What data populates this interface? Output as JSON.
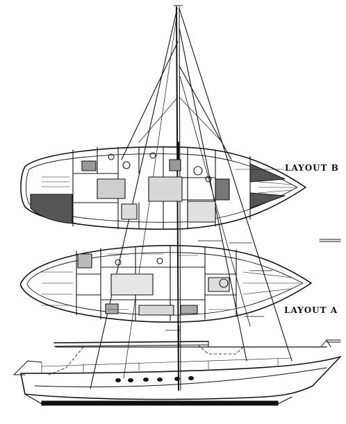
{
  "diagram": {
    "layout_b_label": "LAYOUT B",
    "layout_a_label": "LAYOUT A"
  },
  "colors": {
    "ink": "#111111",
    "paper": "#ffffff"
  }
}
